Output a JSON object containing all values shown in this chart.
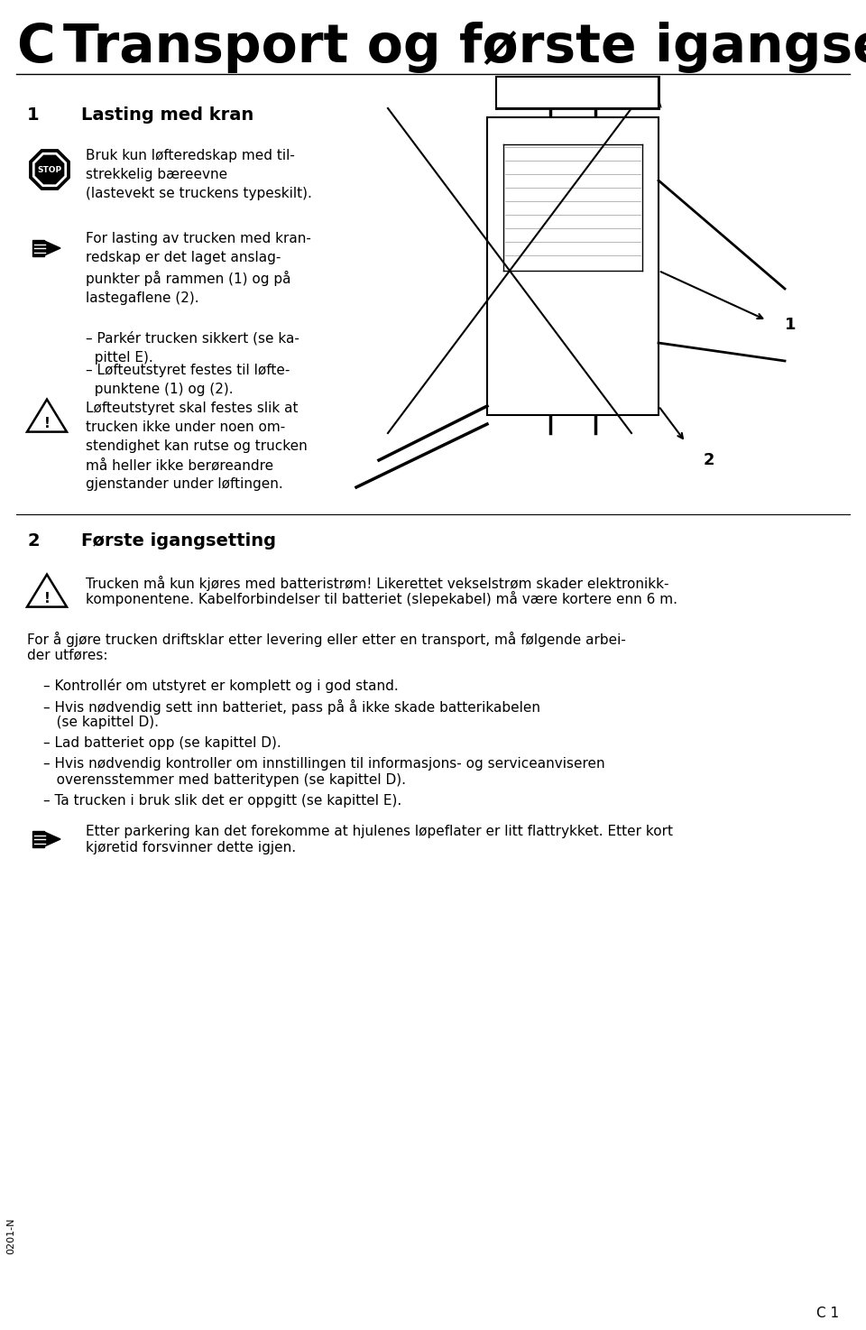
{
  "bg_color": "#ffffff",
  "page_width": 9.6,
  "page_height": 14.74,
  "title_C": "C",
  "title_rest": "Transport og første igangsetting",
  "footer_code": "0201-N",
  "footer_page": "C 1",
  "texts": {
    "stop_text": "Bruk kun løfteredskap med til-\nstrekkelig bæreevne\n(lastevekt se truckens typeskilt).",
    "note_text": "For lasting av trucken med kran-\nredskap er det laget anslag-\npunkter på rammen (1) og på\nlastegaflene (2).",
    "bullet1": "– Parkér trucken sikkert (se ka-\n  pittel E).",
    "bullet2": "– Løfteutstyret festes til løfte-\n  punktene (1) og (2).",
    "warning_text": "Løfteutstyret skal festes slik at\ntrucken ikke under noen om-\nstendighet kan rutse og trucken\nmå heller ikke berøreandre\ngjenstander under løftingen.",
    "section2_p1a": "Trucken må kun kjøres med batteristrøm! Likerettet vekselstrøm skader elektronikk-",
    "section2_p1b": "komponentene. Kabelforbindelser til batteriet (slepekabel) må være kortere enn 6 m.",
    "section2_p2a": "For å gjøre trucken driftsklar etter levering eller etter en transport, må følgende arbei-",
    "section2_p2b": "der utføres:",
    "bullet_s2_1": "– Kontrollér om utstyret er komplett og i god stand.",
    "bullet_s2_2a": "– Hvis nødvendig sett inn batteriet, pass på å ikke skade batterikabelen",
    "bullet_s2_2b": "   (se kapittel D).",
    "bullet_s2_3": "– Lad batteriet opp (se kapittel D).",
    "bullet_s2_4a": "– Hvis nødvendig kontroller om innstillingen til informasjons- og serviceanviseren",
    "bullet_s2_4b": "   overensstemmer med batteritypen (se kapittel D).",
    "bullet_s2_5": "– Ta trucken i bruk slik det er oppgitt (se kapittel E).",
    "note2_text_a": "Etter parkering kan det forekomme at hjulenes løpeflater er litt flattrykket. Etter kort",
    "note2_text_b": "kjøretid forsvinner dette igjen."
  }
}
